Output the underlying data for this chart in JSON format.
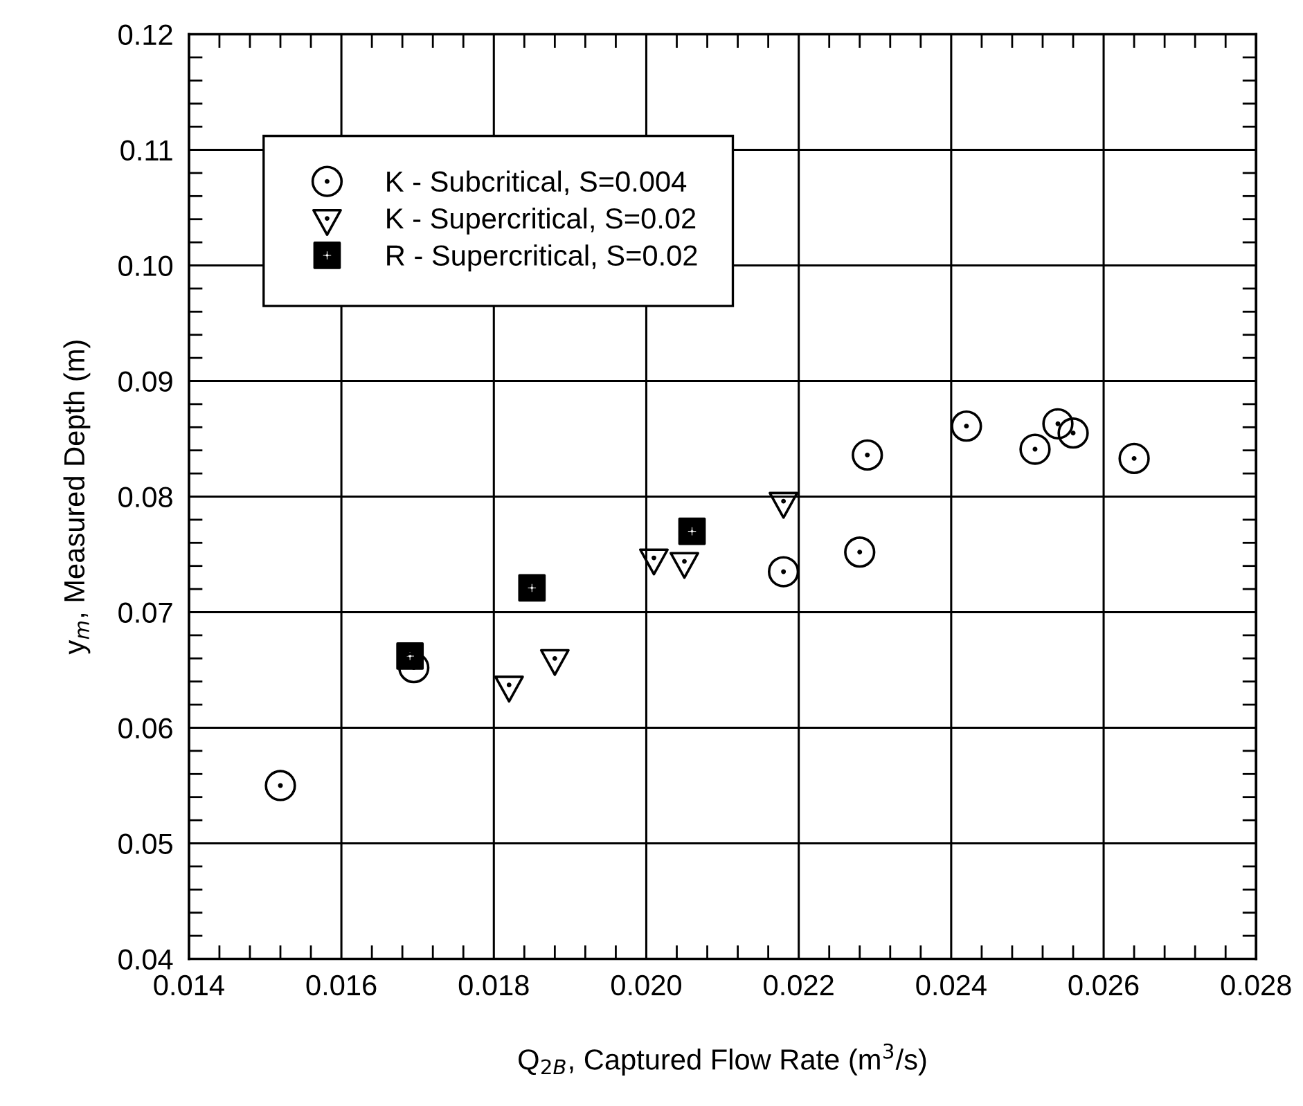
{
  "chart_data": {
    "type": "scatter",
    "xlabel": "Q$_{2B}$, Captured Flow Rate (m$^{3}$/s)",
    "ylabel": "y$_{m}$, Measured Depth (m)",
    "xlim": [
      0.014,
      0.028
    ],
    "xticks": [
      0.014,
      0.016,
      0.018,
      {
        "value": 0.02,
        "label": "0.020"
      },
      0.022,
      0.024,
      0.026,
      0.028
    ],
    "ylim": [
      0.04,
      0.12
    ],
    "yticks": [
      0.04,
      0.05,
      0.06,
      0.07,
      0.08,
      0.09,
      {
        "value": 0.1,
        "label": "0.10"
      },
      0.11,
      0.12
    ],
    "grid": true,
    "legend": "top left",
    "series": [
      {
        "name": "K - Subcritical, S=0.004",
        "color": "#000000",
        "marker": "circle",
        "x": [
          0.0152,
          0.01695,
          0.0218,
          0.0229,
          0.0228,
          0.0242,
          0.0251,
          0.0254,
          0.0256,
          0.0264
        ],
        "values": [
          0.055,
          0.0652,
          0.0735,
          0.0836,
          0.0752,
          0.0861,
          0.0841,
          0.0863,
          0.0855,
          0.0833
        ]
      },
      {
        "name": "K - Supercritical, S=0.02",
        "color": "#000000",
        "marker": "triangle",
        "x": [
          0.0182,
          0.0188,
          0.0201,
          0.0205,
          0.0218
        ],
        "values": [
          0.0637,
          0.066,
          0.0747,
          0.0744,
          0.0796
        ]
      },
      {
        "name": "R - Supercritical, S=0.02",
        "color": "#000000",
        "marker": "square",
        "x": [
          0.0169,
          0.0185,
          0.0206
        ],
        "values": [
          0.0662,
          0.0721,
          0.077
        ]
      }
    ]
  }
}
